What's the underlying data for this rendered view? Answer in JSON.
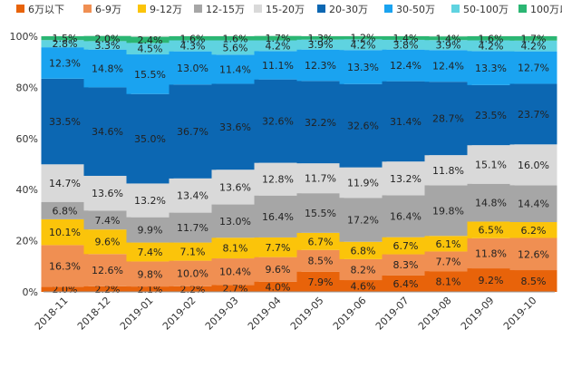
{
  "chart_data": {
    "type": "bar",
    "stacked": true,
    "percent": true,
    "categories": [
      "2018-11",
      "2018-12",
      "2019-01",
      "2019-02",
      "2019-03",
      "2019-04",
      "2019-05",
      "2019-06",
      "2019-07",
      "2019-08",
      "2019-09",
      "2019-10"
    ],
    "ylim": [
      0,
      100
    ],
    "yticks": [
      "0%",
      "20%",
      "40%",
      "60%",
      "80%",
      "100%"
    ],
    "legend_position": "top",
    "series": [
      {
        "name": "6万以下",
        "color": "#e8630a",
        "values": [
          2.0,
          2.2,
          2.1,
          2.2,
          2.7,
          4.0,
          7.9,
          4.6,
          6.4,
          8.1,
          9.2,
          8.5
        ],
        "labels": [
          "2.0%",
          "2.2%",
          "2.1%",
          "2.2%",
          "2.7%",
          "4.0%",
          "7.9%",
          "4.6%",
          "6.4%",
          "8.1%",
          "9.2%",
          "8.5%"
        ]
      },
      {
        "name": "6-9万",
        "color": "#f08f52",
        "values": [
          16.3,
          12.6,
          9.8,
          10.0,
          10.4,
          9.6,
          8.5,
          8.2,
          8.3,
          7.7,
          11.8,
          12.6
        ],
        "labels": [
          "16.3%",
          "12.6%",
          "9.8%",
          "10.0%",
          "10.4%",
          "9.6%",
          "8.5%",
          "8.2%",
          "8.3%",
          "7.7%",
          "11.8%",
          "12.6%"
        ]
      },
      {
        "name": "9-12万",
        "color": "#fbc40a",
        "values": [
          10.1,
          9.6,
          7.4,
          7.1,
          8.1,
          7.7,
          6.7,
          6.8,
          6.7,
          6.1,
          6.5,
          6.2
        ],
        "labels": [
          "10.1%",
          "9.6%",
          "7.4%",
          "7.1%",
          "8.1%",
          "7.7%",
          "6.7%",
          "6.8%",
          "6.7%",
          "6.1%",
          "6.5%",
          "6.2%"
        ]
      },
      {
        "name": "12-15万",
        "color": "#a6a6a6",
        "values": [
          6.8,
          7.4,
          9.9,
          11.7,
          13.0,
          16.4,
          15.5,
          17.2,
          16.4,
          19.8,
          14.8,
          14.4
        ],
        "labels": [
          "6.8%",
          "7.4%",
          "9.9%",
          "11.7%",
          "13.0%",
          "16.4%",
          "15.5%",
          "17.2%",
          "16.4%",
          "19.8%",
          "14.8%",
          "14.4%"
        ]
      },
      {
        "name": "15-20万",
        "color": "#d9d9d9",
        "values": [
          14.7,
          13.6,
          13.2,
          13.4,
          13.6,
          12.8,
          11.7,
          11.9,
          13.2,
          11.8,
          15.1,
          16.0
        ],
        "labels": [
          "14.7%",
          "13.6%",
          "13.2%",
          "13.4%",
          "13.6%",
          "12.8%",
          "11.7%",
          "11.9%",
          "13.2%",
          "11.8%",
          "15.1%",
          "16.0%"
        ]
      },
      {
        "name": "20-30万",
        "color": "#0c67b2",
        "values": [
          33.5,
          34.6,
          35.0,
          36.7,
          33.6,
          32.6,
          32.2,
          32.6,
          31.4,
          28.7,
          23.5,
          23.7
        ],
        "labels": [
          "33.5%",
          "34.6%",
          "35.0%",
          "36.7%",
          "33.6%",
          "32.6%",
          "32.2%",
          "32.6%",
          "31.4%",
          "28.7%",
          "23.5%",
          "23.7%"
        ]
      },
      {
        "name": "30-50万",
        "color": "#1aa3f0",
        "values": [
          12.3,
          14.8,
          15.5,
          13.0,
          11.4,
          11.1,
          12.3,
          13.3,
          12.4,
          12.4,
          13.3,
          12.7
        ],
        "labels": [
          "12.3%",
          "14.8%",
          "15.5%",
          "13.0%",
          "11.4%",
          "11.1%",
          "12.3%",
          "13.3%",
          "12.4%",
          "12.4%",
          "13.3%",
          "12.7%"
        ]
      },
      {
        "name": "50-100万",
        "color": "#5fd3e0",
        "values": [
          2.8,
          3.3,
          4.5,
          4.3,
          5.6,
          4.2,
          3.9,
          4.2,
          3.8,
          3.9,
          4.2,
          4.2
        ],
        "labels": [
          "2.8%",
          "3.3%",
          "4.5%",
          "4.3%",
          "5.6%",
          "4.2%",
          "3.9%",
          "4.2%",
          "3.8%",
          "3.9%",
          "4.2%",
          "4.2%"
        ]
      },
      {
        "name": "100万以上",
        "color": "#2bb673",
        "values": [
          1.5,
          2.0,
          2.4,
          1.6,
          1.6,
          1.7,
          1.3,
          1.2,
          1.4,
          1.4,
          1.6,
          1.7
        ],
        "labels": [
          "1.5%",
          "2.0%",
          "2.4%",
          "1.6%",
          "1.6%",
          "1.7%",
          "1.3%",
          "1.2%",
          "1.4%",
          "1.4%",
          "1.6%",
          "1.7%"
        ]
      }
    ]
  }
}
